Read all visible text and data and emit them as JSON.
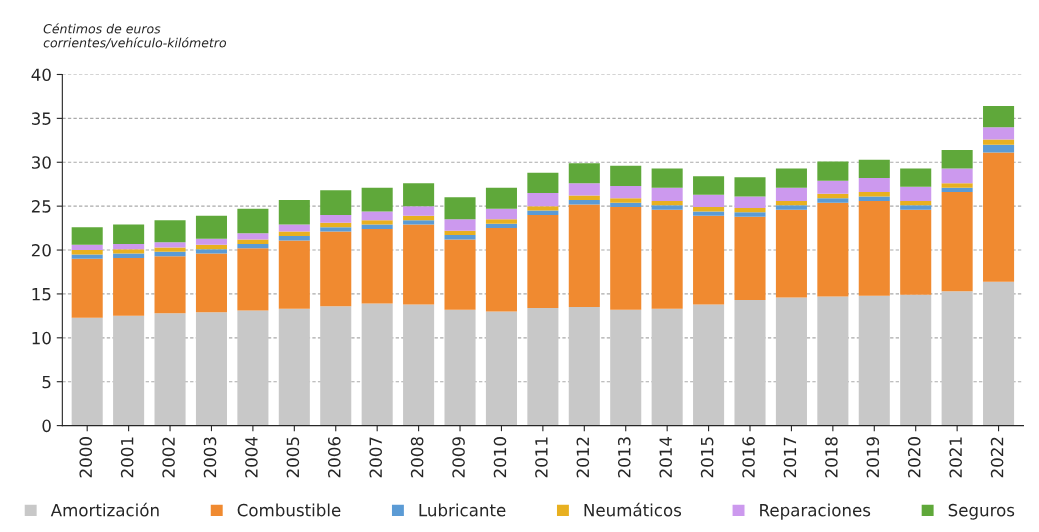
{
  "chart_data": {
    "type": "bar",
    "stacked": true,
    "ylabel": "Céntimos de euros\ncorrientes/vehículo-kilómetro",
    "categories": [
      "2000",
      "2001",
      "2002",
      "2003",
      "2004",
      "2005",
      "2006",
      "2007",
      "2008",
      "2009",
      "2010",
      "2011",
      "2012",
      "2013",
      "2014",
      "2015",
      "2016",
      "2017",
      "2018",
      "2019",
      "2020",
      "2021",
      "2022"
    ],
    "series": [
      {
        "name": "Amortización",
        "color": "#c8c8c8",
        "values": [
          12.3,
          12.5,
          12.8,
          12.9,
          13.1,
          13.3,
          13.6,
          13.9,
          13.8,
          13.2,
          13.0,
          13.4,
          13.5,
          13.2,
          13.3,
          13.8,
          14.3,
          14.6,
          14.7,
          14.8,
          14.9,
          15.3,
          16.4
        ]
      },
      {
        "name": "Combustible",
        "color": "#f08a30",
        "values": [
          6.7,
          6.6,
          6.5,
          6.7,
          7.1,
          7.8,
          8.5,
          8.5,
          9.1,
          8.0,
          9.5,
          10.6,
          11.7,
          11.7,
          11.3,
          10.1,
          9.5,
          10.0,
          10.7,
          10.8,
          9.7,
          11.3,
          14.7
        ]
      },
      {
        "name": "Lubricante",
        "color": "#5b9bd5",
        "values": [
          0.5,
          0.5,
          0.5,
          0.5,
          0.5,
          0.5,
          0.5,
          0.5,
          0.5,
          0.5,
          0.5,
          0.5,
          0.5,
          0.5,
          0.5,
          0.5,
          0.5,
          0.5,
          0.5,
          0.5,
          0.5,
          0.5,
          0.9
        ]
      },
      {
        "name": "Neumáticos",
        "color": "#e8b020",
        "values": [
          0.5,
          0.5,
          0.5,
          0.5,
          0.5,
          0.5,
          0.5,
          0.5,
          0.5,
          0.5,
          0.5,
          0.5,
          0.5,
          0.5,
          0.5,
          0.5,
          0.5,
          0.5,
          0.5,
          0.5,
          0.5,
          0.5,
          0.6
        ]
      },
      {
        "name": "Reparaciones",
        "color": "#cc99ee",
        "values": [
          0.6,
          0.6,
          0.6,
          0.7,
          0.7,
          0.8,
          0.9,
          1.0,
          1.1,
          1.3,
          1.2,
          1.5,
          1.4,
          1.4,
          1.5,
          1.4,
          1.3,
          1.5,
          1.5,
          1.6,
          1.6,
          1.7,
          1.4
        ]
      },
      {
        "name": "Seguros",
        "color": "#5fa83a",
        "values": [
          2.0,
          2.2,
          2.5,
          2.6,
          2.8,
          2.8,
          2.8,
          2.7,
          2.6,
          2.5,
          2.4,
          2.3,
          2.3,
          2.3,
          2.2,
          2.1,
          2.2,
          2.2,
          2.2,
          2.1,
          2.1,
          2.1,
          2.4
        ]
      }
    ],
    "ylim": [
      0,
      40
    ],
    "yticks": [
      0,
      5,
      10,
      15,
      20,
      25,
      30,
      35,
      40
    ],
    "grid": "y",
    "legend": "bottom"
  }
}
